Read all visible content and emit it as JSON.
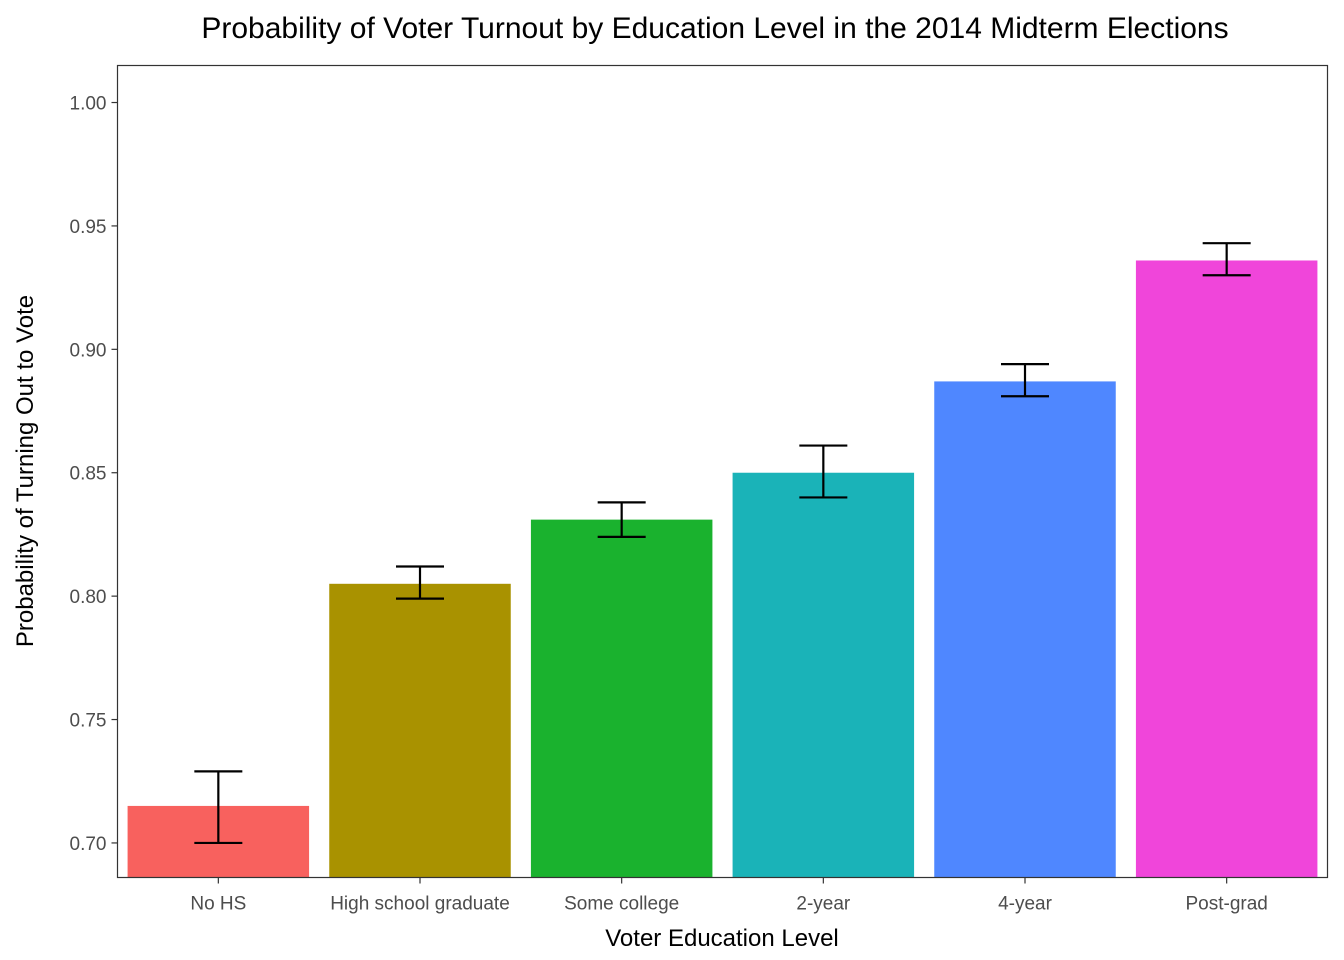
{
  "chart_data": {
    "type": "bar",
    "title": "Probability of Voter Turnout by Education Level in the 2014 Midterm Elections",
    "xlabel": "Voter Education Level",
    "ylabel": "Probability of Turning Out to Vote",
    "categories": [
      "No HS",
      "High school graduate",
      "Some college",
      "2-year",
      "4-year",
      "Post-grad"
    ],
    "values": [
      0.715,
      0.805,
      0.831,
      0.85,
      0.887,
      0.936
    ],
    "error_low": [
      0.7,
      0.799,
      0.824,
      0.84,
      0.881,
      0.93
    ],
    "error_high": [
      0.729,
      0.812,
      0.838,
      0.861,
      0.894,
      0.943
    ],
    "colors": [
      "#F8615E",
      "#A99200",
      "#1AB22E",
      "#1AB3B8",
      "#4F87FF",
      "#F045DA"
    ],
    "ylim": [
      0.686,
      1.015
    ],
    "yticks": [
      0.7,
      0.75,
      0.8,
      0.85,
      0.9,
      0.95,
      1.0
    ],
    "ytick_labels": [
      "0.70",
      "0.75",
      "0.80",
      "0.85",
      "0.90",
      "0.95",
      "1.00"
    ],
    "grid": false,
    "legend": "none"
  }
}
